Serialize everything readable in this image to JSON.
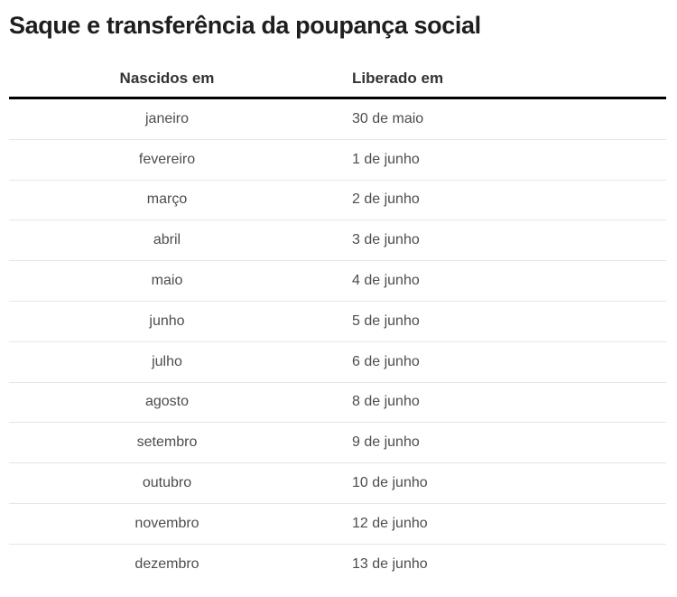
{
  "title": "Saque e transferência da poupança social",
  "table": {
    "headers": {
      "born_in": "Nascidos em",
      "released_on": "Liberado em"
    },
    "rows": [
      {
        "month": "janeiro",
        "released": "30 de maio"
      },
      {
        "month": "fevereiro",
        "released": "1 de junho"
      },
      {
        "month": "março",
        "released": "2 de junho"
      },
      {
        "month": "abril",
        "released": "3 de junho"
      },
      {
        "month": "maio",
        "released": "4 de junho"
      },
      {
        "month": "junho",
        "released": "5 de junho"
      },
      {
        "month": "julho",
        "released": "6 de junho"
      },
      {
        "month": "agosto",
        "released": "8 de junho"
      },
      {
        "month": "setembro",
        "released": "9 de junho"
      },
      {
        "month": "outubro",
        "released": "10 de junho"
      },
      {
        "month": "novembro",
        "released": "12 de junho"
      },
      {
        "month": "dezembro",
        "released": "13 de junho"
      }
    ]
  },
  "colors": {
    "background": "#ffffff",
    "title_text": "#1e1e1e",
    "header_text": "#333333",
    "cell_text": "#4d4d4d",
    "header_rule": "#000000",
    "row_divider": "#e6e6e6"
  }
}
